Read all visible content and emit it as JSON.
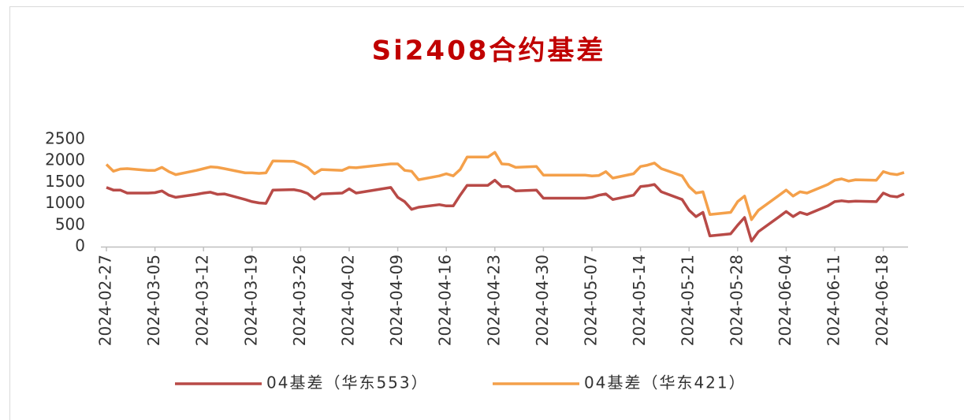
{
  "chart_data": {
    "type": "line",
    "title": "Si2408合约基差",
    "x": [
      "2024-02-27",
      "2024-02-28",
      "2024-02-29",
      "2024-03-01",
      "2024-03-04",
      "2024-03-05",
      "2024-03-06",
      "2024-03-07",
      "2024-03-08",
      "2024-03-11",
      "2024-03-12",
      "2024-03-13",
      "2024-03-14",
      "2024-03-15",
      "2024-03-18",
      "2024-03-19",
      "2024-03-20",
      "2024-03-21",
      "2024-03-22",
      "2024-03-25",
      "2024-03-26",
      "2024-03-27",
      "2024-03-28",
      "2024-03-29",
      "2024-04-01",
      "2024-04-02",
      "2024-04-03",
      "2024-04-08",
      "2024-04-09",
      "2024-04-10",
      "2024-04-11",
      "2024-04-12",
      "2024-04-15",
      "2024-04-16",
      "2024-04-17",
      "2024-04-18",
      "2024-04-19",
      "2024-04-22",
      "2024-04-23",
      "2024-04-24",
      "2024-04-25",
      "2024-04-26",
      "2024-04-29",
      "2024-04-30",
      "2024-05-06",
      "2024-05-07",
      "2024-05-08",
      "2024-05-09",
      "2024-05-10",
      "2024-05-13",
      "2024-05-14",
      "2024-05-15",
      "2024-05-16",
      "2024-05-17",
      "2024-05-20",
      "2024-05-21",
      "2024-05-22",
      "2024-05-23",
      "2024-05-24",
      "2024-05-27",
      "2024-05-28",
      "2024-05-29",
      "2024-05-30",
      "2024-05-31",
      "2024-06-03",
      "2024-06-04",
      "2024-06-05",
      "2024-06-06",
      "2024-06-07",
      "2024-06-10",
      "2024-06-11",
      "2024-06-12",
      "2024-06-13",
      "2024-06-14",
      "2024-06-17",
      "2024-06-18",
      "2024-06-19",
      "2024-06-20",
      "2024-06-21"
    ],
    "series": [
      {
        "name": "04基差（华东553）",
        "color": "#b84a47",
        "values": [
          1380,
          1320,
          1320,
          1250,
          1250,
          1260,
          1300,
          1200,
          1150,
          1220,
          1250,
          1270,
          1220,
          1230,
          1100,
          1050,
          1020,
          1010,
          1320,
          1330,
          1300,
          1240,
          1110,
          1230,
          1250,
          1350,
          1250,
          1380,
          1150,
          1050,
          870,
          920,
          980,
          950,
          950,
          1200,
          1430,
          1430,
          1550,
          1400,
          1400,
          1300,
          1320,
          1130,
          1130,
          1150,
          1200,
          1230,
          1100,
          1200,
          1400,
          1420,
          1450,
          1280,
          1100,
          850,
          700,
          800,
          250,
          300,
          500,
          680,
          130,
          350,
          700,
          820,
          700,
          800,
          750,
          950,
          1050,
          1070,
          1050,
          1060,
          1050,
          1250,
          1180,
          1160,
          1230
        ]
      },
      {
        "name": "04基差（华东421）",
        "color": "#f4a04a",
        "values": [
          1920,
          1760,
          1810,
          1820,
          1780,
          1780,
          1850,
          1750,
          1680,
          1780,
          1820,
          1860,
          1850,
          1820,
          1720,
          1720,
          1710,
          1720,
          2000,
          1990,
          1930,
          1850,
          1700,
          1800,
          1780,
          1850,
          1840,
          1930,
          1930,
          1780,
          1760,
          1560,
          1650,
          1700,
          1650,
          1800,
          2090,
          2090,
          2200,
          1930,
          1920,
          1850,
          1870,
          1670,
          1670,
          1650,
          1660,
          1750,
          1600,
          1700,
          1870,
          1900,
          1950,
          1820,
          1650,
          1400,
          1250,
          1280,
          750,
          800,
          1050,
          1180,
          630,
          850,
          1200,
          1320,
          1180,
          1280,
          1250,
          1450,
          1550,
          1580,
          1530,
          1560,
          1550,
          1750,
          1700,
          1680,
          1730
        ]
      }
    ],
    "xlim": [
      "2024-02-27",
      "2024-06-21"
    ],
    "xticks": [
      "2024-02-27",
      "2024-03-05",
      "2024-03-12",
      "2024-03-19",
      "2024-03-26",
      "2024-04-02",
      "2024-04-09",
      "2024-04-16",
      "2024-04-23",
      "2024-04-30",
      "2024-05-07",
      "2024-05-14",
      "2024-05-21",
      "2024-05-28",
      "2024-06-04",
      "2024-06-11",
      "2024-06-18"
    ],
    "ylim": [
      0,
      2500
    ],
    "yticks": [
      0,
      500,
      1000,
      1500,
      2000,
      2500
    ],
    "grid": false,
    "legend": "bottom"
  }
}
